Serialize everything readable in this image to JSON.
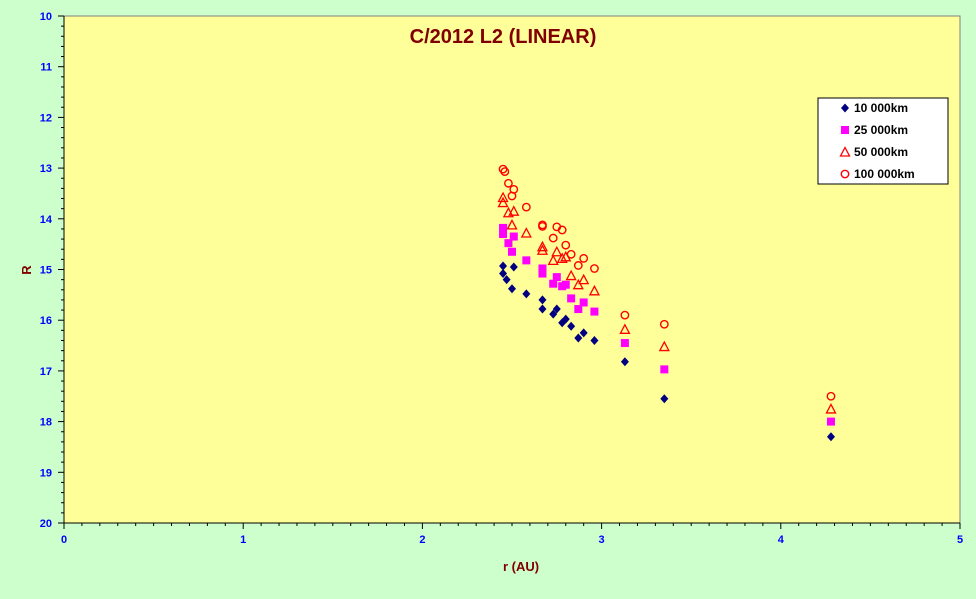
{
  "chart_data": {
    "type": "scatter",
    "title": "C/2012 L2 (LINEAR)",
    "xlabel": "r (AU)",
    "ylabel": "R",
    "xlim": [
      0,
      5
    ],
    "ylim": [
      10,
      20
    ],
    "y_inverted": true,
    "x_ticks": [
      "0",
      "1",
      "2",
      "3",
      "4",
      "5"
    ],
    "y_ticks": [
      "10",
      "11",
      "12",
      "13",
      "14",
      "15",
      "16",
      "17",
      "18",
      "19",
      "20"
    ],
    "grid": false,
    "legend_position": "top-right",
    "colors": {
      "outer_background": "#CCFFCC",
      "plot_background": "#FFFF99",
      "title": "#800000",
      "axis_label": "#800000",
      "tick_label": "#0000FF"
    },
    "series": [
      {
        "name": "10 000km",
        "marker": "diamond",
        "color": "#000080",
        "points": [
          [
            2.45,
            14.93
          ],
          [
            2.45,
            15.08
          ],
          [
            2.47,
            15.2
          ],
          [
            2.5,
            15.38
          ],
          [
            2.51,
            14.95
          ],
          [
            2.58,
            15.48
          ],
          [
            2.67,
            15.6
          ],
          [
            2.67,
            15.78
          ],
          [
            2.73,
            15.88
          ],
          [
            2.75,
            15.78
          ],
          [
            2.78,
            16.05
          ],
          [
            2.8,
            15.98
          ],
          [
            2.83,
            16.12
          ],
          [
            2.87,
            16.35
          ],
          [
            2.9,
            16.25
          ],
          [
            2.96,
            16.4
          ],
          [
            3.13,
            16.82
          ],
          [
            3.35,
            17.55
          ],
          [
            4.28,
            18.3
          ]
        ]
      },
      {
        "name": "25 000km",
        "marker": "square",
        "color": "#FF00FF",
        "points": [
          [
            2.45,
            14.18
          ],
          [
            2.45,
            14.3
          ],
          [
            2.48,
            14.48
          ],
          [
            2.5,
            14.65
          ],
          [
            2.51,
            14.35
          ],
          [
            2.58,
            14.82
          ],
          [
            2.67,
            14.98
          ],
          [
            2.67,
            15.08
          ],
          [
            2.73,
            15.28
          ],
          [
            2.75,
            15.15
          ],
          [
            2.78,
            15.33
          ],
          [
            2.8,
            15.3
          ],
          [
            2.83,
            15.57
          ],
          [
            2.87,
            15.78
          ],
          [
            2.9,
            15.65
          ],
          [
            2.96,
            15.83
          ],
          [
            3.13,
            16.45
          ],
          [
            3.35,
            16.97
          ],
          [
            4.28,
            18.0
          ]
        ]
      },
      {
        "name": "50 000km",
        "marker": "triangle",
        "color": "#FF0000",
        "points": [
          [
            2.45,
            13.58
          ],
          [
            2.45,
            13.68
          ],
          [
            2.48,
            13.88
          ],
          [
            2.5,
            14.12
          ],
          [
            2.51,
            13.85
          ],
          [
            2.58,
            14.28
          ],
          [
            2.67,
            14.55
          ],
          [
            2.67,
            14.62
          ],
          [
            2.73,
            14.82
          ],
          [
            2.75,
            14.65
          ],
          [
            2.78,
            14.78
          ],
          [
            2.8,
            14.75
          ],
          [
            2.83,
            15.12
          ],
          [
            2.87,
            15.3
          ],
          [
            2.9,
            15.2
          ],
          [
            2.96,
            15.42
          ],
          [
            3.13,
            16.18
          ],
          [
            3.35,
            16.52
          ],
          [
            4.28,
            17.75
          ]
        ]
      },
      {
        "name": "100 000km",
        "marker": "circle",
        "color": "#FF0000",
        "points": [
          [
            2.45,
            13.02
          ],
          [
            2.46,
            13.07
          ],
          [
            2.48,
            13.3
          ],
          [
            2.5,
            13.55
          ],
          [
            2.51,
            13.42
          ],
          [
            2.58,
            13.77
          ],
          [
            2.67,
            14.12
          ],
          [
            2.67,
            14.15
          ],
          [
            2.73,
            14.38
          ],
          [
            2.75,
            14.16
          ],
          [
            2.78,
            14.22
          ],
          [
            2.8,
            14.52
          ],
          [
            2.83,
            14.7
          ],
          [
            2.87,
            14.92
          ],
          [
            2.9,
            14.78
          ],
          [
            2.96,
            14.98
          ],
          [
            3.13,
            15.9
          ],
          [
            3.35,
            16.08
          ],
          [
            4.28,
            17.5
          ]
        ]
      }
    ]
  }
}
